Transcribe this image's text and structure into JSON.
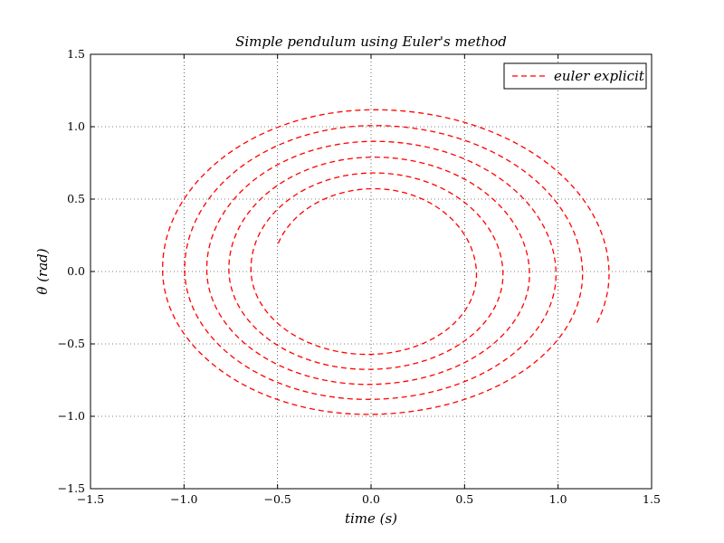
{
  "chart_data": {
    "type": "line",
    "title": "Simple pendulum using Euler's method",
    "xlabel": "time (s)",
    "ylabel": "θ (rad)",
    "xlim": [
      -1.5,
      1.5
    ],
    "ylim": [
      -1.5,
      1.5
    ],
    "xticks": [
      -1.5,
      -1.0,
      -0.5,
      0.0,
      0.5,
      1.0,
      1.5
    ],
    "yticks": [
      -1.5,
      -1.0,
      -0.5,
      0.0,
      0.5,
      1.0,
      1.5
    ],
    "xtick_labels": [
      "−1.5",
      "−1.0",
      "−0.5",
      "0.0",
      "0.5",
      "1.0",
      "1.5"
    ],
    "ytick_labels": [
      "−1.5",
      "−1.0",
      "−0.5",
      "0.0",
      "0.5",
      "1.0",
      "1.5"
    ],
    "grid": true,
    "legend": {
      "location": "top-right",
      "entries": [
        "euler explicit"
      ]
    },
    "series": [
      {
        "name": "euler explicit",
        "color": "#ff0000",
        "style": "dashed",
        "spiral": {
          "center": [
            0.0,
            0.0
          ],
          "start_point": [
            1.2,
            -0.42
          ],
          "outer_extents": {
            "right": 1.28,
            "top": 1.15,
            "left": -1.18,
            "bottom": -1.07
          },
          "inner_extents": {
            "right": 0.5,
            "top": 0.55,
            "left": -0.53,
            "bottom": -0.5
          },
          "turns": 5.5,
          "direction": "inward"
        }
      }
    ]
  }
}
